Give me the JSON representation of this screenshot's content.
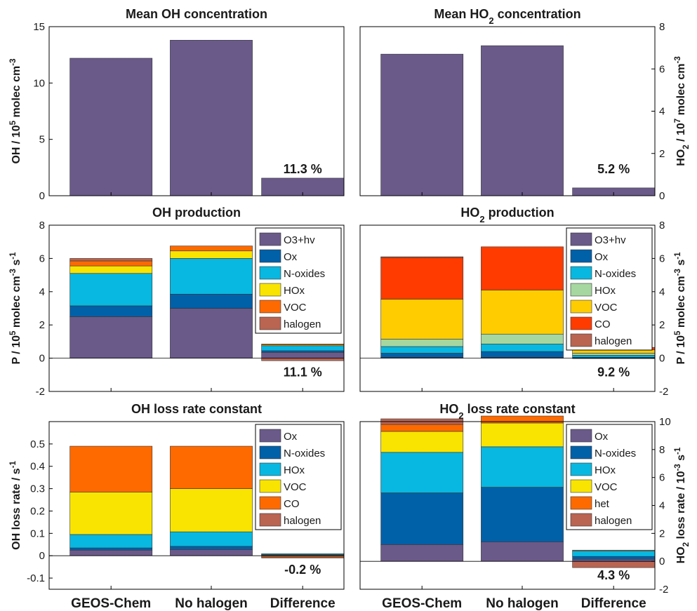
{
  "colors": {
    "purple": "#6a5a8a",
    "darkblue": "#0060a8",
    "cyan": "#08b8e0",
    "yellow": "#f8e400",
    "orange": "#ff6a00",
    "brown": "#b96552",
    "gold": "#ffcc00",
    "green": "#a6d7a0",
    "red": "#ff3b00"
  },
  "chart_data": [
    {
      "id": "p11",
      "type": "bar",
      "title": "Mean OH concentration",
      "ylabel": "OH / 10^5 molec cm^-3",
      "axis_side": "left",
      "ylim": [
        0,
        15
      ],
      "yticks": [
        "0",
        "5",
        "10",
        "15"
      ],
      "categories": [
        "GEOS-Chem",
        "No halogen",
        "Difference"
      ],
      "series": [
        {
          "values": [
            12.2,
            13.8,
            1.56
          ],
          "color": "#6a5a8a"
        }
      ],
      "annotation": "11.3 %"
    },
    {
      "id": "p12",
      "type": "bar",
      "title": "Mean HO2 concentration",
      "ylabel": "HO2 / 10^7 molec cm^-3",
      "axis_side": "right",
      "ylim": [
        0,
        8
      ],
      "yticks": [
        "0",
        "2",
        "4",
        "6",
        "8"
      ],
      "categories": [
        "GEOS-Chem",
        "No halogen",
        "Difference"
      ],
      "series": [
        {
          "values": [
            6.7,
            7.1,
            0.37
          ],
          "color": "#6a5a8a"
        }
      ],
      "annotation": "5.2 %"
    },
    {
      "id": "p21",
      "type": "stacked-bar",
      "title": "OH production",
      "ylabel": "P / 10^5 molec cm^-3 s^-1",
      "axis_side": "left",
      "ylim": [
        -2,
        8
      ],
      "yticks": [
        "-2",
        "0",
        "2",
        "4",
        "6",
        "8"
      ],
      "categories": [
        "GEOS-Chem",
        "No halogen",
        "Difference"
      ],
      "series": [
        {
          "name": "O3+hv",
          "color": "#6a5a8a",
          "values": [
            2.5,
            3.0,
            0.35
          ]
        },
        {
          "name": "Ox",
          "color": "#0060a8",
          "values": [
            0.65,
            0.85,
            0.1
          ]
        },
        {
          "name": "N-oxides",
          "color": "#08b8e0",
          "values": [
            1.95,
            2.15,
            0.3
          ]
        },
        {
          "name": "HOx",
          "color": "#f8e400",
          "values": [
            0.45,
            0.45,
            0.05
          ]
        },
        {
          "name": "VOC",
          "color": "#ff6a00",
          "values": [
            0.3,
            0.3,
            0.05
          ]
        },
        {
          "name": "halogen",
          "color": "#b96552",
          "values": [
            0.15,
            0.0,
            -0.15
          ]
        }
      ],
      "legend_placement": "top-right",
      "annotation": "11.1 %"
    },
    {
      "id": "p22",
      "type": "stacked-bar",
      "title": "HO2 production",
      "ylabel": "P / 10^5 molec cm^-3 s^-1",
      "axis_side": "right",
      "ylim": [
        -2,
        8
      ],
      "yticks": [
        "-2",
        "0",
        "2",
        "4",
        "6",
        "8"
      ],
      "categories": [
        "GEOS-Chem",
        "No halogen",
        "Difference"
      ],
      "series": [
        {
          "name": "O3+hv",
          "color": "#6a5a8a",
          "values": [
            0.05,
            0.05,
            0.01
          ]
        },
        {
          "name": "Ox",
          "color": "#0060a8",
          "values": [
            0.25,
            0.35,
            0.05
          ]
        },
        {
          "name": "N-oxides",
          "color": "#08b8e0",
          "values": [
            0.4,
            0.45,
            0.12
          ]
        },
        {
          "name": "HOx",
          "color": "#a6d7a0",
          "values": [
            0.45,
            0.6,
            0.12
          ]
        },
        {
          "name": "VOC",
          "color": "#ffcc00",
          "values": [
            2.4,
            2.65,
            0.2
          ]
        },
        {
          "name": "CO",
          "color": "#ff3b00",
          "values": [
            2.5,
            2.6,
            0.15
          ]
        },
        {
          "name": "halogen",
          "color": "#b96552",
          "values": [
            0.05,
            0.0,
            0.0
          ]
        }
      ],
      "legend_placement": "top-right",
      "annotation": "9.2 %"
    },
    {
      "id": "p31",
      "type": "stacked-bar",
      "title": "OH loss rate constant",
      "ylabel": "OH loss rate / s^-1",
      "axis_side": "left",
      "ylim": [
        -0.15,
        0.6
      ],
      "yticks": [
        "-0.1",
        "0",
        "0.1",
        "0.2",
        "0.3",
        "0.4",
        "0.5"
      ],
      "categories": [
        "GEOS-Chem",
        "No halogen",
        "Difference"
      ],
      "series": [
        {
          "name": "Ox",
          "color": "#6a5a8a",
          "values": [
            0.025,
            0.028,
            0.003
          ]
        },
        {
          "name": "N-oxides",
          "color": "#0060a8",
          "values": [
            0.01,
            0.014,
            0.002
          ]
        },
        {
          "name": "HOx",
          "color": "#08b8e0",
          "values": [
            0.06,
            0.065,
            0.004
          ]
        },
        {
          "name": "VOC",
          "color": "#f8e400",
          "values": [
            0.19,
            0.193,
            0.0
          ]
        },
        {
          "name": "CO",
          "color": "#ff6a00",
          "values": [
            0.205,
            0.19,
            -0.006
          ]
        },
        {
          "name": "halogen",
          "color": "#b96552",
          "values": [
            0.0,
            0.0,
            -0.004
          ]
        }
      ],
      "legend_placement": "top-right",
      "annotation": "-0.2 %"
    },
    {
      "id": "p32",
      "type": "stacked-bar",
      "title": "HO2 loss rate constant",
      "ylabel": "HO2 loss rate / 10^-3 s^-1",
      "axis_side": "right",
      "ylim": [
        -2,
        10
      ],
      "yticks": [
        "-2",
        "0",
        "2",
        "4",
        "6",
        "8",
        "10"
      ],
      "categories": [
        "GEOS-Chem",
        "No halogen",
        "Difference"
      ],
      "series": [
        {
          "name": "Ox",
          "color": "#6a5a8a",
          "values": [
            1.2,
            1.4,
            0.15
          ]
        },
        {
          "name": "N-oxides",
          "color": "#0060a8",
          "values": [
            3.7,
            3.9,
            0.2
          ]
        },
        {
          "name": "HOx",
          "color": "#08b8e0",
          "values": [
            2.9,
            2.9,
            0.4
          ]
        },
        {
          "name": "VOC",
          "color": "#f8e400",
          "values": [
            1.5,
            1.7,
            0.0
          ]
        },
        {
          "name": "het",
          "color": "#ff6a00",
          "values": [
            0.5,
            0.5,
            0.05
          ]
        },
        {
          "name": "halogen",
          "color": "#b96552",
          "values": [
            0.4,
            0.0,
            -0.45
          ]
        }
      ],
      "legend_placement": "top-right",
      "annotation": "4.3 %"
    }
  ]
}
